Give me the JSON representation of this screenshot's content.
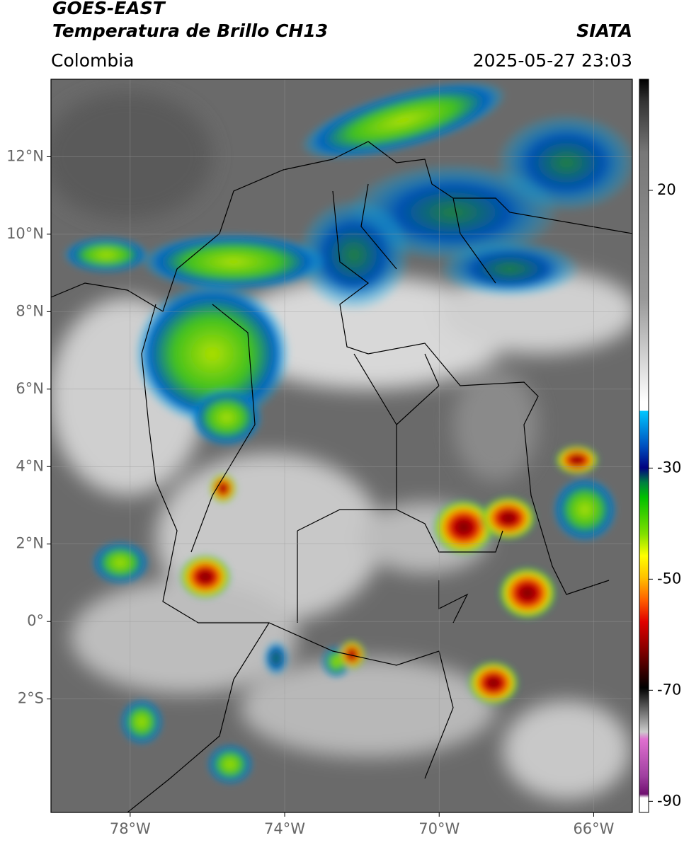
{
  "header": {
    "title": "GOES-EAST",
    "subtitle": "Temperatura de Brillo CH13",
    "source": "SIATA",
    "region": "Colombia",
    "datetime": "2025-05-27 23:03"
  },
  "map": {
    "xlim": [
      -80.05,
      -65
    ],
    "ylim": [
      -4.93,
      14
    ],
    "xticks": [
      {
        "value": -78,
        "label": "78°W"
      },
      {
        "value": -74,
        "label": "74°W"
      },
      {
        "value": -70,
        "label": "70°W"
      },
      {
        "value": -66,
        "label": "66°W"
      }
    ],
    "yticks": [
      {
        "value": 12,
        "label": "12°N"
      },
      {
        "value": 10,
        "label": "10°N"
      },
      {
        "value": 8,
        "label": "8°N"
      },
      {
        "value": 6,
        "label": "6°N"
      },
      {
        "value": 4,
        "label": "4°N"
      },
      {
        "value": 2,
        "label": "2°N"
      },
      {
        "value": 0,
        "label": "0°"
      },
      {
        "value": -2,
        "label": "2°S"
      }
    ],
    "grid": true
  },
  "colorbar": {
    "lim": [
      -92,
      40
    ],
    "ticks": [
      20,
      -30,
      -50,
      -70,
      -90
    ]
  }
}
